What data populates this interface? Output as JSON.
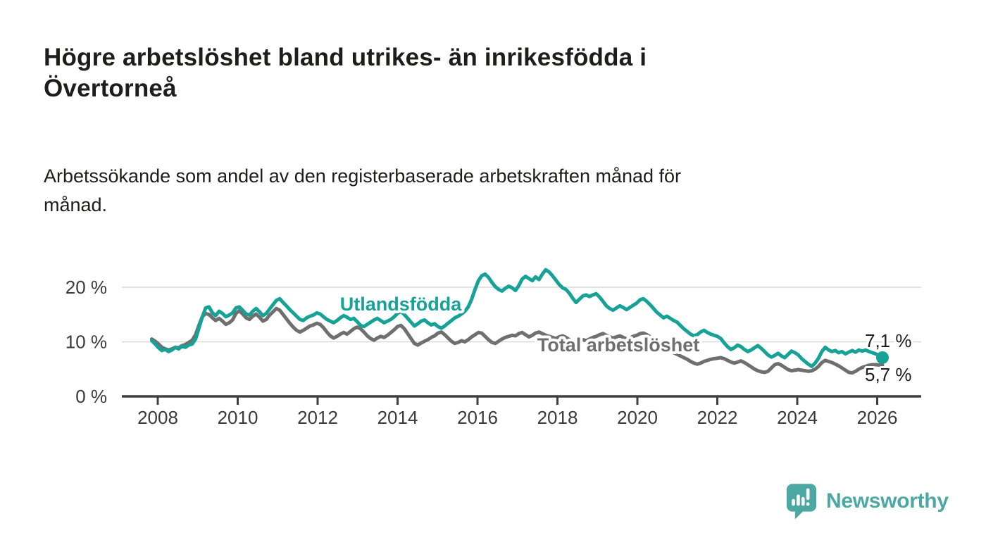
{
  "header": {
    "title_lines": [
      "Högre arbetslöshet bland utrikes- än inrikesfödda i",
      "Övertorneå"
    ],
    "subtitle_lines": [
      "Arbetssökande som andel av den registerbaserade arbetskraften månad för",
      "månad."
    ]
  },
  "branding": {
    "name": "Newsworthy",
    "color": "#4BA8A4",
    "icon": "newsworthy-speech-bubble-chart-icon"
  },
  "chart_data": {
    "type": "line",
    "title": "Högre arbetslöshet bland utrikes- än inrikesfödda i Övertorneå",
    "subtitle": "Arbetssökande som andel av den registerbaserade arbetskraften månad för månad.",
    "x_unit": "month",
    "x_start": "2008-01",
    "x_end": "2026-02",
    "x_tick_labels": [
      "2008",
      "2010",
      "2012",
      "2014",
      "2016",
      "2018",
      "2020",
      "2022",
      "2024",
      "2026"
    ],
    "y_ticks": [
      {
        "value": 0,
        "label": "0 %"
      },
      {
        "value": 10,
        "label": "10 %"
      },
      {
        "value": 20,
        "label": "20 %"
      }
    ],
    "ylim": [
      0,
      24
    ],
    "grid": "horizontal",
    "legend": "inline-labels",
    "series": [
      {
        "name": "Utlandsfödda",
        "color": "#16A296",
        "end_label": "7,1 %",
        "last_value": 7.1,
        "values": [
          10.2,
          9.6,
          8.9,
          8.4,
          8.6,
          8.2,
          8.5,
          9.0,
          8.7,
          9.2,
          9.0,
          9.4,
          9.6,
          10.5,
          12.5,
          14.5,
          16.2,
          16.4,
          15.3,
          14.8,
          15.6,
          15.2,
          14.6,
          14.9,
          15.3,
          16.2,
          16.4,
          15.8,
          15.1,
          14.9,
          15.6,
          16.1,
          15.5,
          14.8,
          15.2,
          16.0,
          16.8,
          17.6,
          17.9,
          17.2,
          16.6,
          15.9,
          15.3,
          14.7,
          14.1,
          13.9,
          14.4,
          14.7,
          14.9,
          15.3,
          15.1,
          14.6,
          14.1,
          13.8,
          13.5,
          13.9,
          14.4,
          14.8,
          14.5,
          14.1,
          14.3,
          13.7,
          13.0,
          12.8,
          13.2,
          13.6,
          14.0,
          14.3,
          13.9,
          13.5,
          13.8,
          14.1,
          14.6,
          15.2,
          15.6,
          15.0,
          14.3,
          13.6,
          12.9,
          13.3,
          13.8,
          14.0,
          13.5,
          13.1,
          13.3,
          12.8,
          12.5,
          12.9,
          13.4,
          13.9,
          14.4,
          14.7,
          15.1,
          15.6,
          16.4,
          17.8,
          19.6,
          21.2,
          22.1,
          22.4,
          21.8,
          20.9,
          20.1,
          19.6,
          19.3,
          19.8,
          20.2,
          19.9,
          19.4,
          20.3,
          21.5,
          22.0,
          21.6,
          21.2,
          21.9,
          21.4,
          22.4,
          23.2,
          22.8,
          22.1,
          21.3,
          20.5,
          19.9,
          19.6,
          18.9,
          18.0,
          17.2,
          17.8,
          18.4,
          18.6,
          18.3,
          18.6,
          18.8,
          18.2,
          17.4,
          16.6,
          16.1,
          15.8,
          16.2,
          16.6,
          16.3,
          15.9,
          16.3,
          16.7,
          17.1,
          17.7,
          17.9,
          17.4,
          16.8,
          16.1,
          15.4,
          14.9,
          14.4,
          14.7,
          14.3,
          13.9,
          13.6,
          13.0,
          12.4,
          11.9,
          11.4,
          11.1,
          11.3,
          11.8,
          12.1,
          11.7,
          11.4,
          11.2,
          11.0,
          10.6,
          9.8,
          9.1,
          8.6,
          8.9,
          9.4,
          9.1,
          8.6,
          8.2,
          8.5,
          8.9,
          9.3,
          8.8,
          8.2,
          7.6,
          7.2,
          7.5,
          7.9,
          7.4,
          7.1,
          7.7,
          8.3,
          8.0,
          7.6,
          6.9,
          6.4,
          5.9,
          5.5,
          6.1,
          7.0,
          8.2,
          9.0,
          8.5,
          8.2,
          8.4,
          8.0,
          8.2,
          7.8,
          8.1,
          8.4,
          8.1,
          8.5,
          8.3,
          8.5,
          8.2,
          8.0,
          7.8,
          7.5,
          7.1
        ]
      },
      {
        "name": "Total arbetslöshet",
        "color": "#6F6F6F",
        "end_label": "5,7 %",
        "last_value": 5.7,
        "values": [
          10.5,
          10.1,
          9.6,
          9.0,
          8.7,
          8.5,
          8.7,
          9.0,
          8.9,
          9.3,
          9.5,
          9.9,
          10.3,
          11.3,
          13.0,
          14.6,
          15.2,
          15.0,
          14.4,
          13.9,
          14.3,
          13.8,
          13.2,
          13.5,
          14.0,
          15.2,
          15.7,
          15.1,
          14.4,
          14.1,
          14.7,
          15.1,
          14.5,
          13.8,
          14.1,
          14.9,
          15.5,
          16.1,
          15.8,
          15.0,
          14.2,
          13.4,
          12.7,
          12.1,
          11.8,
          12.1,
          12.5,
          12.9,
          13.1,
          13.4,
          13.2,
          12.6,
          11.8,
          11.1,
          10.7,
          11.0,
          11.4,
          11.7,
          11.4,
          11.9,
          12.4,
          12.7,
          12.4,
          11.8,
          11.1,
          10.6,
          10.3,
          10.7,
          11.0,
          10.8,
          11.2,
          11.7,
          12.2,
          12.8,
          13.0,
          12.4,
          11.5,
          10.6,
          9.7,
          9.4,
          9.8,
          10.1,
          10.4,
          10.8,
          11.1,
          11.6,
          11.8,
          11.3,
          10.7,
          10.1,
          9.7,
          9.9,
          10.2,
          10.0,
          10.4,
          10.9,
          11.3,
          11.7,
          11.6,
          11.0,
          10.4,
          9.9,
          9.7,
          10.1,
          10.5,
          10.8,
          11.0,
          11.2,
          11.1,
          11.5,
          11.7,
          11.3,
          10.9,
          11.2,
          11.6,
          11.8,
          11.5,
          11.2,
          11.0,
          10.8,
          10.6,
          10.9,
          11.1,
          10.8,
          10.4,
          10.1,
          10.3,
          10.6,
          10.4,
          10.2,
          10.5,
          10.8,
          11.0,
          11.3,
          11.5,
          11.2,
          10.9,
          10.7,
          10.9,
          11.1,
          10.8,
          10.5,
          10.7,
          11.0,
          11.2,
          11.5,
          11.6,
          11.3,
          10.9,
          10.4,
          9.9,
          9.5,
          9.1,
          8.8,
          8.4,
          8.0,
          7.7,
          7.4,
          7.1,
          6.8,
          6.4,
          6.1,
          5.9,
          6.1,
          6.4,
          6.6,
          6.8,
          6.9,
          7.0,
          7.1,
          6.9,
          6.6,
          6.3,
          6.1,
          6.3,
          6.5,
          6.2,
          5.8,
          5.4,
          5.0,
          4.7,
          4.5,
          4.4,
          4.6,
          5.2,
          5.8,
          6.0,
          5.7,
          5.3,
          4.9,
          4.7,
          4.8,
          4.9,
          4.8,
          4.7,
          4.6,
          4.7,
          5.0,
          5.5,
          6.2,
          6.6,
          6.4,
          6.2,
          5.9,
          5.6,
          5.2,
          4.8,
          4.4,
          4.3,
          4.6,
          5.0,
          5.3,
          5.5,
          5.7,
          5.8,
          5.8,
          5.75,
          5.7
        ]
      }
    ]
  }
}
